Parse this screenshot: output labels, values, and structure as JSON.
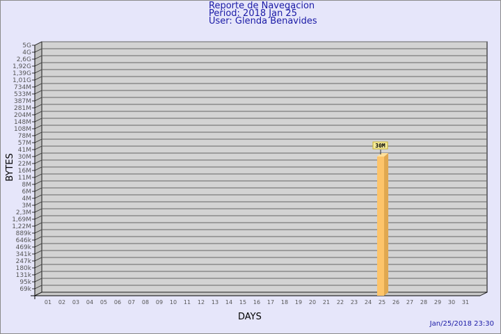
{
  "header": {
    "title": "Reporte de Navegacion",
    "period": "Period: 2018 Jan 25",
    "user": "User: Glenda Benavides"
  },
  "footer": {
    "timestamp": "Jan/25/2018 23:30"
  },
  "chart_data": {
    "type": "bar",
    "title": "Reporte de Navegacion",
    "xlabel": "DAYS",
    "ylabel": "BYTES",
    "y_scale": "log",
    "y_tick_labels": [
      "5G",
      "4G",
      "2,6G",
      "1,92G",
      "1,39G",
      "1,01G",
      "734M",
      "533M",
      "387M",
      "281M",
      "204M",
      "148M",
      "108M",
      "78M",
      "57M",
      "41M",
      "30M",
      "22M",
      "16M",
      "11M",
      "8M",
      "6M",
      "4M",
      "3M",
      "2,3M",
      "1,69M",
      "1,22M",
      "889k",
      "646k",
      "469k",
      "341k",
      "247k",
      "180k",
      "131k",
      "95k",
      "69k"
    ],
    "categories": [
      "01",
      "02",
      "03",
      "04",
      "05",
      "06",
      "07",
      "08",
      "09",
      "10",
      "11",
      "12",
      "13",
      "14",
      "15",
      "16",
      "17",
      "18",
      "19",
      "20",
      "21",
      "22",
      "23",
      "24",
      "25",
      "26",
      "27",
      "28",
      "29",
      "30",
      "31"
    ],
    "values": [
      0,
      0,
      0,
      0,
      0,
      0,
      0,
      0,
      0,
      0,
      0,
      0,
      0,
      0,
      0,
      0,
      0,
      0,
      0,
      0,
      0,
      0,
      0,
      0,
      "30M",
      0,
      0,
      0,
      0,
      0,
      0
    ],
    "data_labels": [
      {
        "category": "25",
        "label": "30M"
      }
    ],
    "grid": true,
    "colors": {
      "bar": "#fdc46a",
      "bar_side": "#e0a850",
      "plot_bg": "#d3d3d3",
      "background": "#e6e6fa",
      "title": "#1a1aa6"
    }
  }
}
